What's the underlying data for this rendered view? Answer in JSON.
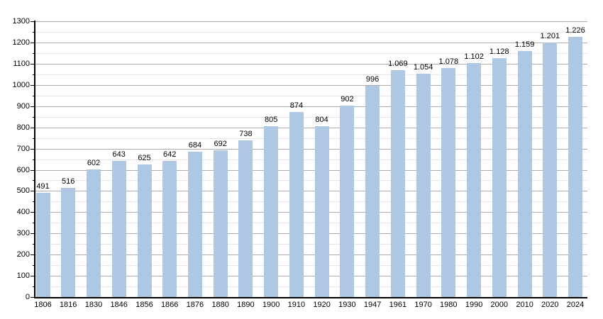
{
  "chart_data": {
    "type": "bar",
    "title": "",
    "xlabel": "",
    "ylabel": "",
    "categories": [
      "1806",
      "1816",
      "1830",
      "1846",
      "1856",
      "1866",
      "1876",
      "1880",
      "1890",
      "1900",
      "1910",
      "1920",
      "1930",
      "1947",
      "1961",
      "1970",
      "1980",
      "1990",
      "2000",
      "2010",
      "2020",
      "2024"
    ],
    "values": [
      491,
      516,
      602,
      643,
      625,
      642,
      684,
      692,
      738,
      805,
      874,
      804,
      902,
      996,
      1069,
      1054,
      1078,
      1102,
      1128,
      1159,
      1201,
      1226
    ],
    "value_labels": [
      "491",
      "516",
      "602",
      "643",
      "625",
      "642",
      "684",
      "692",
      "738",
      "805",
      "874",
      "804",
      "902",
      "996",
      "1.069",
      "1.054",
      "1.078",
      "1.102",
      "1.128",
      "1.159",
      "1.201",
      "1.226"
    ],
    "y_tick_labels": [
      "0",
      "100",
      "200",
      "300",
      "400",
      "500",
      "600",
      "700",
      "800",
      "900",
      "1000",
      "1100",
      "1200",
      "1300"
    ],
    "ylim": [
      0,
      1300
    ],
    "y_major_step": 100,
    "y_minor_step": 50,
    "grid": true,
    "legend": "none",
    "colors": {
      "bar_fill": "#aec7e2",
      "major_grid": "#ababab",
      "minor_grid": "#e4e4e4",
      "axis": "#000000",
      "text": "#000000",
      "background": "#ffffff"
    }
  }
}
